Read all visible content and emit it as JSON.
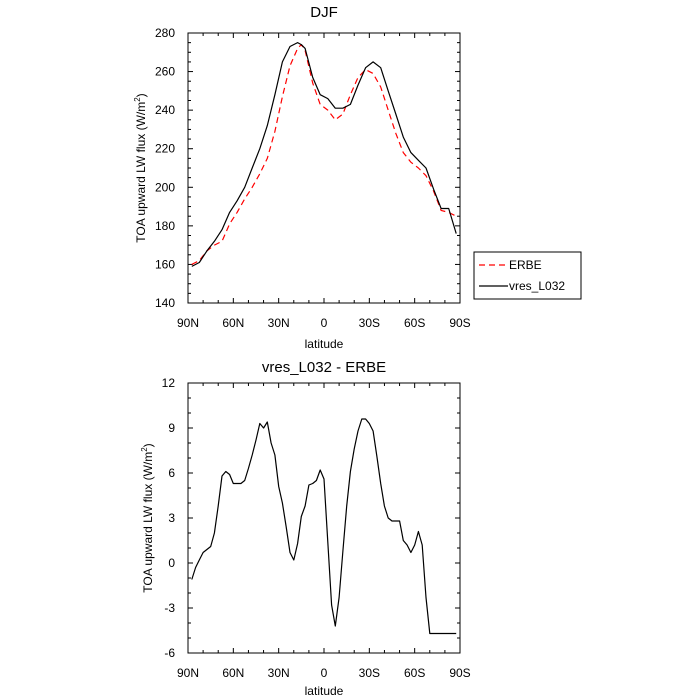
{
  "chart_data": [
    {
      "type": "line",
      "title": "DJF",
      "xlabel": "latitude",
      "ylabel": "TOA upward LW flux (W/m",
      "ylabel_superscript": "2",
      "ylabel_suffix": ")",
      "xlim": [
        90,
        -90
      ],
      "ylim": [
        140,
        280
      ],
      "x_ticks": [
        90,
        60,
        30,
        0,
        -30,
        -60,
        -90
      ],
      "x_tick_labels": [
        "90N",
        "60N",
        "30N",
        "0",
        "30S",
        "60S",
        "90S"
      ],
      "y_ticks": [
        140,
        160,
        180,
        200,
        220,
        240,
        260,
        280
      ],
      "y_tick_labels": [
        "140",
        "160",
        "180",
        "200",
        "220",
        "240",
        "260",
        "280"
      ],
      "legend_position": "right",
      "series": [
        {
          "name": "ERBE",
          "color": "#ff0000",
          "dash": "dashed",
          "x": [
            87.5,
            82.5,
            77.5,
            72.5,
            67.5,
            62.5,
            57.5,
            52.5,
            47.5,
            42.5,
            37.5,
            32.5,
            27.5,
            22.5,
            17.5,
            15,
            12.5,
            7.5,
            2.5,
            -2.5,
            -7.5,
            -12.5,
            -17.5,
            -22.5,
            -27.5,
            -32.5,
            -37.5,
            -42.5,
            -47.5,
            -52.5,
            -57.5,
            -62.5,
            -67.5,
            -72.5,
            -77.5,
            -82.5,
            -87.5
          ],
          "y": [
            160,
            162,
            167,
            170,
            172,
            181,
            187,
            194,
            200,
            207,
            215,
            229,
            247,
            263,
            272,
            274,
            271,
            254,
            243,
            240,
            235,
            238,
            248,
            257,
            261,
            259,
            252,
            240,
            228,
            218,
            213,
            210,
            206,
            198,
            188,
            187,
            185
          ]
        },
        {
          "name": "vres_L032",
          "color": "#000000",
          "dash": "solid",
          "x": [
            87.5,
            82.5,
            77.5,
            72.5,
            67.5,
            62.5,
            57.5,
            52.5,
            47.5,
            42.5,
            37.5,
            32.5,
            27.5,
            22.5,
            17.5,
            15,
            12.5,
            7.5,
            2.5,
            -2.5,
            -7.5,
            -12.5,
            -17.5,
            -22.5,
            -27.5,
            -32.5,
            -37.5,
            -42.5,
            -47.5,
            -52.5,
            -57.5,
            -62.5,
            -67.5,
            -72.5,
            -77.5,
            -82.5,
            -87.5
          ],
          "y": [
            159,
            161,
            167,
            172,
            178,
            187,
            193,
            200,
            210,
            220,
            232,
            248,
            265,
            273,
            275,
            274,
            272,
            257,
            248,
            246,
            241,
            241,
            243,
            253,
            262,
            265,
            262,
            250,
            238,
            226,
            218,
            214,
            210,
            199,
            189,
            189,
            176
          ]
        }
      ]
    },
    {
      "type": "line",
      "title": "vres_L032 - ERBE",
      "xlabel": "latitude",
      "ylabel": "TOA upward LW flux (W/m",
      "ylabel_superscript": "2",
      "ylabel_suffix": ")",
      "xlim": [
        90,
        -90
      ],
      "ylim": [
        -6,
        12
      ],
      "x_ticks": [
        90,
        60,
        30,
        0,
        -30,
        -60,
        -90
      ],
      "x_tick_labels": [
        "90N",
        "60N",
        "30N",
        "0",
        "30S",
        "60S",
        "90S"
      ],
      "y_ticks": [
        -6,
        -3,
        0,
        3,
        6,
        9,
        12
      ],
      "y_tick_labels": [
        "-6",
        "-3",
        "0",
        "3",
        "6",
        "9",
        "12"
      ],
      "series": [
        {
          "name": "vres_L032 - ERBE",
          "color": "#000000",
          "dash": "solid",
          "x": [
            87.5,
            85,
            82.5,
            80,
            77.5,
            75,
            72.5,
            70,
            67.5,
            65,
            62.5,
            60,
            57.5,
            55,
            52.5,
            50,
            47.5,
            45,
            42.5,
            40,
            37.5,
            35,
            32.5,
            30,
            27.5,
            25,
            22.5,
            20,
            17.5,
            15,
            12.5,
            10,
            7.5,
            5,
            2.5,
            0,
            -2.5,
            -5,
            -7.5,
            -10,
            -12.5,
            -15,
            -17.5,
            -20,
            -22.5,
            -25,
            -27.5,
            -30,
            -32.5,
            -35,
            -37.5,
            -40,
            -42.5,
            -45,
            -47.5,
            -50,
            -52.5,
            -55,
            -57.5,
            -60,
            -62.5,
            -65,
            -67.5,
            -70,
            -72.5,
            -75,
            -77.5,
            -80,
            -82.5,
            -85,
            -87.5
          ],
          "y": [
            -1.1,
            -0.3,
            0.2,
            0.7,
            0.9,
            1.1,
            2.0,
            3.8,
            5.8,
            6.1,
            5.9,
            5.3,
            5.3,
            5.3,
            5.5,
            6.3,
            7.2,
            8.2,
            9.3,
            9.0,
            9.4,
            8.0,
            7.2,
            5.1,
            4.0,
            2.4,
            0.7,
            0.2,
            1.3,
            3.1,
            3.8,
            5.2,
            5.3,
            5.5,
            6.2,
            5.6,
            1.4,
            -2.8,
            -4.2,
            -2.3,
            0.8,
            3.8,
            6.1,
            7.6,
            8.8,
            9.6,
            9.6,
            9.3,
            8.8,
            7.1,
            5.3,
            3.8,
            3.0,
            2.8,
            2.8,
            2.8,
            1.5,
            1.2,
            0.7,
            1.2,
            2.1,
            1.2,
            -2.3,
            -4.7,
            -4.7,
            -4.7,
            -4.7,
            -4.7,
            -4.7,
            -4.7,
            -4.7
          ]
        }
      ]
    }
  ]
}
